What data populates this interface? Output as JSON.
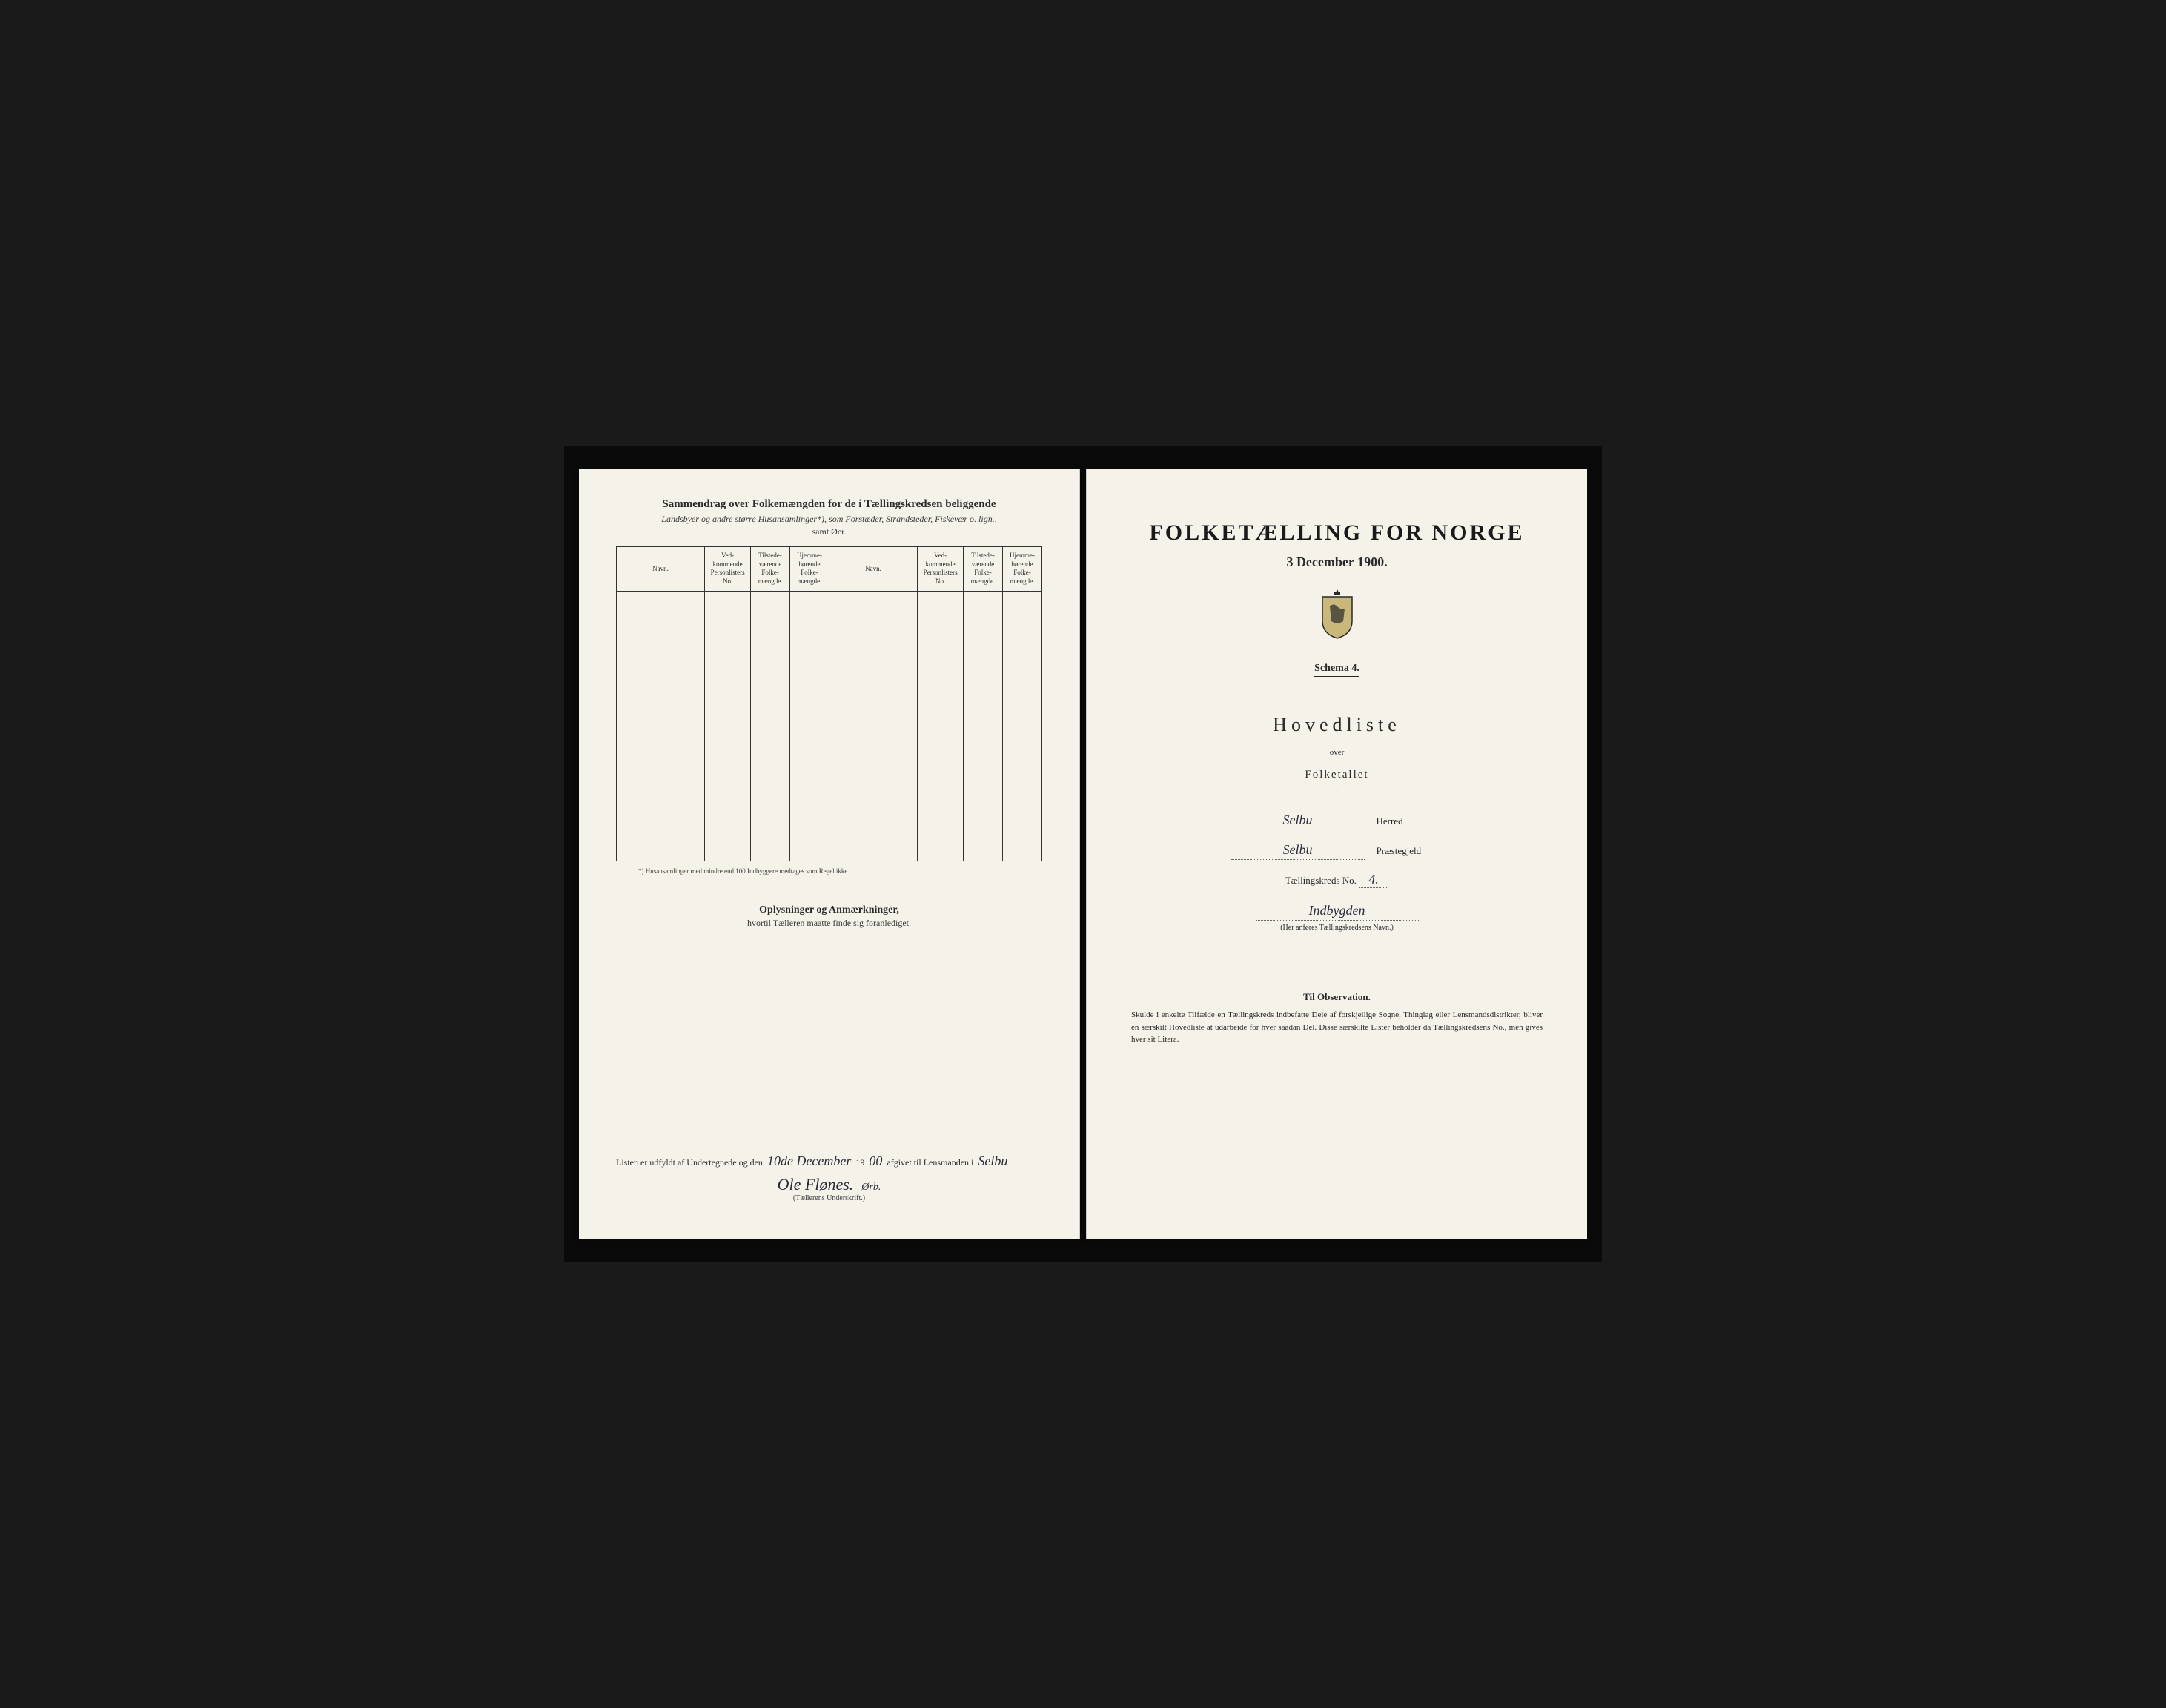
{
  "colors": {
    "page_bg": "#f5f2ea",
    "backdrop": "#1a1a1a",
    "text": "#2a2a2a",
    "ink": "#2a2a3a"
  },
  "left": {
    "title": "Sammendrag over Folkemængden for de i Tællingskredsen beliggende",
    "subtitle": "Landsbyer og andre større Husansamlinger*), som Forstæder, Strandsteder, Fiskevær o. lign.,",
    "subtitle2": "samt Øer.",
    "table": {
      "headers": [
        "Navn.",
        "Ved-kommende Personlisters No.",
        "Tilstede-værende Folke-mængde.",
        "Hjemme-hørende Folke-mængde.",
        "Navn.",
        "Ved-kommende Personlisters No.",
        "Tilstede-værende Folke-mængde.",
        "Hjemme-hørende Folke-mængde."
      ],
      "row_count": 14
    },
    "footnote": "*) Husansamlinger med mindre end 100 Indbyggere medtages som Regel ikke.",
    "oplysninger_title": "Oplysninger og Anmærkninger,",
    "oplysninger_sub": "hvortil Tælleren maatte finde sig foranlediget.",
    "signature": {
      "prefix": "Listen er udfyldt af Undertegnede og den",
      "date_handwritten": "10de December",
      "year_prefix": "19",
      "year_suffix": "00",
      "middle": "afgivet til Lensmanden i",
      "place": "Selbu",
      "name": "Ole Flønes.",
      "suffix_note": "Ørb.",
      "caption": "(Tællerens Underskrift.)"
    }
  },
  "right": {
    "main_title": "FOLKETÆLLING FOR NORGE",
    "date": "3 December 1900.",
    "schema": "Schema 4.",
    "hovedliste": "Hovedliste",
    "over": "over",
    "folketallet": "Folketallet",
    "i": "i",
    "herred_value": "Selbu",
    "herred_label": "Herred",
    "praestegjeld_value": "Selbu",
    "praestegjeld_label": "Præstegjeld",
    "kreds_prefix": "Tællingskreds No.",
    "kreds_no": "4.",
    "kreds_name": "Indbygden",
    "kreds_caption": "(Her anføres Tællingskredsens Navn.)",
    "observation_title": "Til Observation.",
    "observation_text": "Skulde i enkelte Tilfælde en Tællingskreds indbefatte Dele af forskjellige Sogne, Thinglag eller Lensmandsdistrikter, bliver en særskilt Hovedliste at udarbeide for hver saadan Del. Disse særskilte Lister beholder da Tællingskredsens No., men gives hver sit Litera."
  }
}
